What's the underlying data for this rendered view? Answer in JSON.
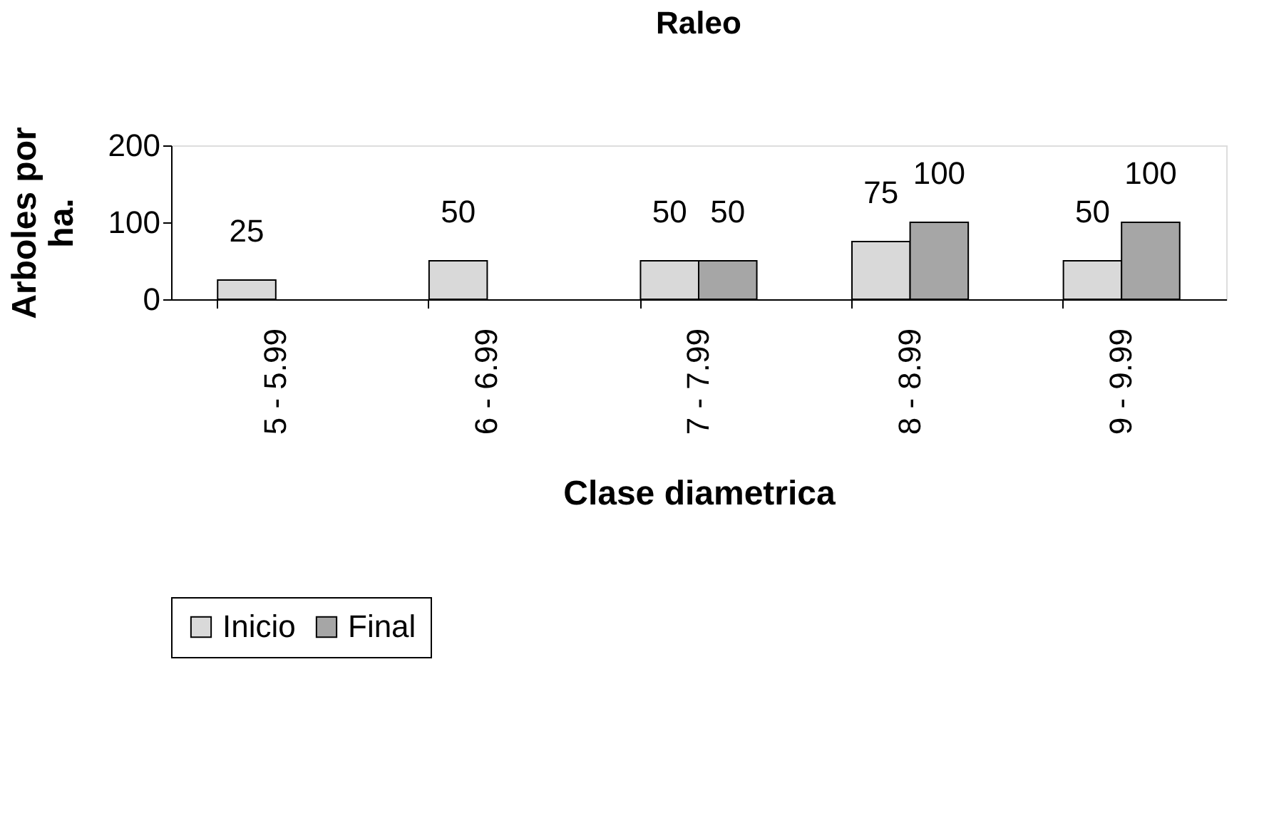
{
  "chart_data": {
    "type": "bar",
    "title": "Raleo",
    "xlabel": "Clase diametrica",
    "ylabel": "Arboles por ha.",
    "categories": [
      "5 - 5.99",
      "6 - 6.99",
      "7 - 7.99",
      "8 - 8.99",
      "9 - 9.99"
    ],
    "series": [
      {
        "name": "Inicio",
        "color": "#d9d9d9",
        "values": [
          25,
          50,
          50,
          75,
          50
        ]
      },
      {
        "name": "Final",
        "color": "#a6a6a6",
        "values": [
          null,
          null,
          50,
          100,
          100
        ]
      }
    ],
    "ylim": [
      0,
      200
    ],
    "yticks": [
      0,
      100,
      200
    ],
    "grid": false,
    "legend": "bottom",
    "data_labels": true
  }
}
